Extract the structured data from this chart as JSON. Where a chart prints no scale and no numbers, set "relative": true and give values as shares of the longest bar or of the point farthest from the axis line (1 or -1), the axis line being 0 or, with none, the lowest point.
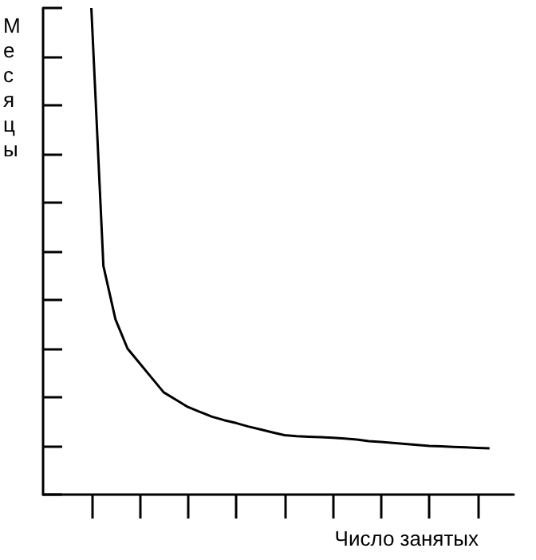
{
  "chart_data": {
    "type": "line",
    "relative": true,
    "xlabel": "Число занятых",
    "ylabel": "Месяцы",
    "grid": false,
    "categories": [
      null,
      null,
      null,
      null,
      null,
      null,
      null,
      null,
      null,
      null,
      null,
      null,
      null,
      null,
      null,
      null,
      null,
      null,
      null,
      null,
      null,
      null,
      null,
      null,
      null,
      null,
      null,
      null,
      null,
      null,
      null,
      null,
      null,
      null,
      null,
      null,
      null,
      null,
      null,
      null
    ],
    "series": [
      {
        "color": "#000000",
        "values": [
          null,
          null,
          null,
          null,
          1.0,
          0.47,
          0.36,
          0.3,
          0.27,
          0.24,
          0.21,
          0.195,
          0.18,
          0.17,
          0.16,
          0.153,
          0.147,
          0.14,
          0.134,
          0.128,
          0.122,
          0.12,
          0.119,
          0.118,
          0.117,
          0.115,
          0.113,
          0.11,
          0.108,
          0.106,
          0.104,
          0.102,
          0.1,
          0.099,
          0.098,
          0.097,
          0.096,
          0.095,
          null,
          null
        ]
      }
    ]
  }
}
